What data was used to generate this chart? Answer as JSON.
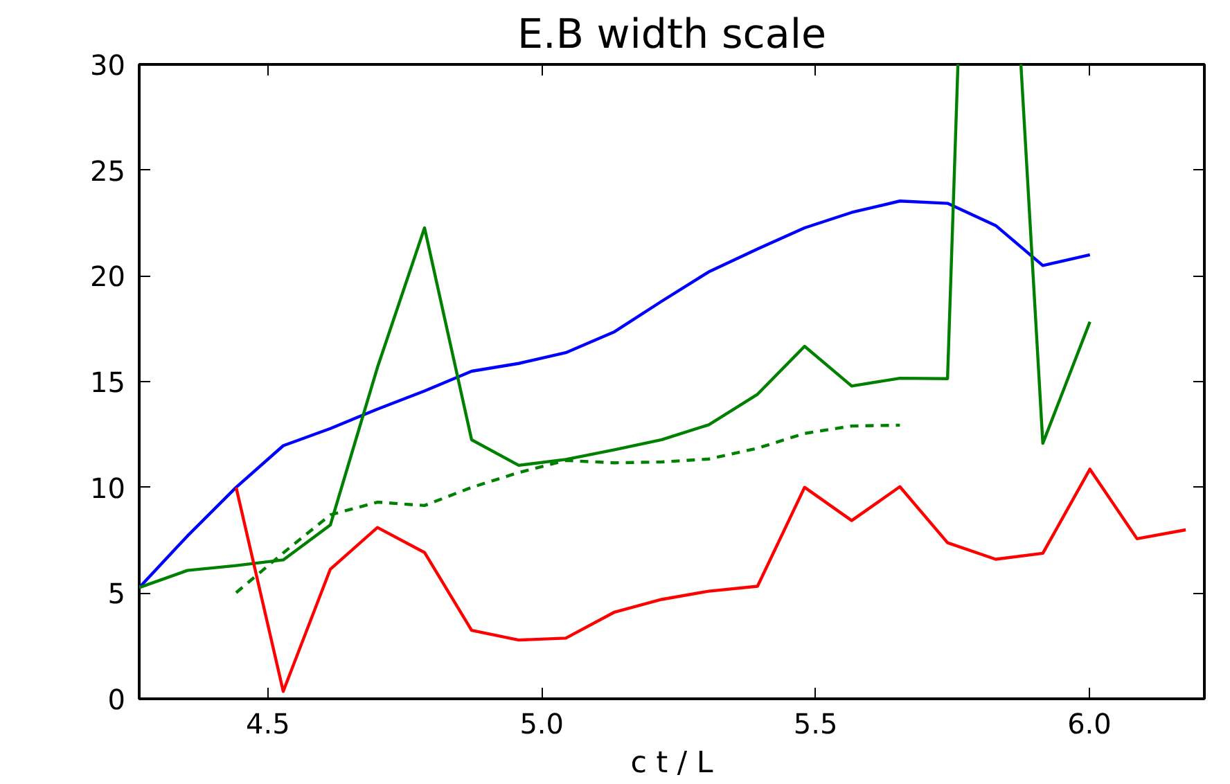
{
  "chart_data": {
    "type": "line",
    "title": "E.B width scale",
    "xlabel": "c t / L",
    "x": [
      4.265,
      4.353,
      4.442,
      4.528,
      4.614,
      4.7,
      4.786,
      4.872,
      4.958,
      5.044,
      5.133,
      5.219,
      5.305,
      5.394,
      5.48,
      5.566,
      5.654,
      5.741,
      5.829,
      5.915,
      6.001,
      6.087,
      6.176
    ],
    "series": [
      {
        "color": "#0000ff",
        "line_style": "solid",
        "values": [
          5.26,
          7.7,
          10.0,
          11.97,
          12.78,
          13.7,
          14.56,
          15.49,
          15.86,
          16.37,
          17.36,
          18.8,
          20.19,
          21.27,
          22.27,
          23.0,
          23.54,
          23.43,
          22.38,
          20.49,
          21.0,
          null,
          null
        ]
      },
      {
        "color": "#008000",
        "line_style": "solid",
        "x": [
          4.265,
          4.353,
          4.442,
          4.528,
          4.614,
          4.7,
          4.786,
          4.872,
          4.958,
          5.044,
          5.133,
          5.219,
          5.305,
          5.394,
          5.48,
          5.566,
          5.654,
          5.741,
          5.76,
          5.818,
          5.875,
          5.915,
          6.001
        ],
        "values": [
          5.26,
          6.07,
          6.3,
          6.57,
          8.22,
          15.67,
          22.27,
          12.25,
          11.04,
          11.32,
          11.78,
          12.25,
          12.96,
          14.4,
          16.67,
          14.79,
          15.16,
          15.14,
          30,
          null,
          30,
          12.08,
          17.83
        ]
      },
      {
        "color": "#008000",
        "line_style": "dashed",
        "values": [
          null,
          null,
          5.02,
          6.9,
          8.7,
          9.3,
          9.14,
          10.0,
          10.7,
          11.27,
          11.16,
          11.2,
          11.34,
          11.85,
          12.55,
          12.9,
          12.94,
          null,
          null,
          null,
          null,
          null,
          null
        ]
      },
      {
        "color": "#ff0000",
        "line_style": "solid",
        "values": [
          null,
          null,
          10.0,
          0.35,
          6.13,
          8.1,
          6.92,
          3.24,
          2.78,
          2.87,
          4.1,
          4.7,
          5.09,
          5.32,
          10.0,
          8.43,
          10.03,
          7.38,
          6.6,
          6.88,
          10.86,
          7.57,
          7.99
        ]
      }
    ],
    "xlim": [
      4.265,
      6.21
    ],
    "ylim": [
      0,
      30
    ],
    "xticks": [
      4.5,
      {
        "value": 5,
        "label": "5.0"
      },
      5.5,
      {
        "value": 6,
        "label": "6.0"
      }
    ],
    "yticks": [
      0,
      5,
      10,
      15,
      20,
      25,
      30
    ],
    "grid": false
  }
}
